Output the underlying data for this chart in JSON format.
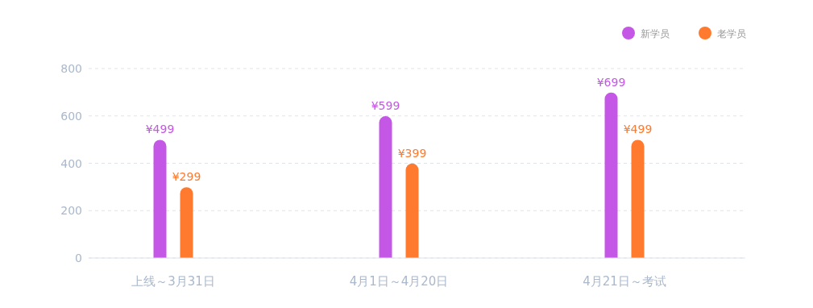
{
  "chart_data": {
    "type": "bar",
    "categories": [
      "上线～3月31日",
      "4月1日～4月20日",
      "4月21日～考试"
    ],
    "series": [
      {
        "name": "新学员",
        "color": "#c557e6",
        "values": [
          499,
          599,
          699
        ],
        "value_labels": [
          "¥499",
          "¥599",
          "¥699"
        ]
      },
      {
        "name": "老学员",
        "color": "#ff7a2e",
        "values": [
          299,
          399,
          499
        ],
        "value_labels": [
          "¥299",
          "¥399",
          "¥499"
        ]
      }
    ],
    "ylim": [
      0,
      800
    ],
    "yticks": [
      0,
      200,
      400,
      600,
      800
    ],
    "grid": "y",
    "legend": "top right"
  }
}
